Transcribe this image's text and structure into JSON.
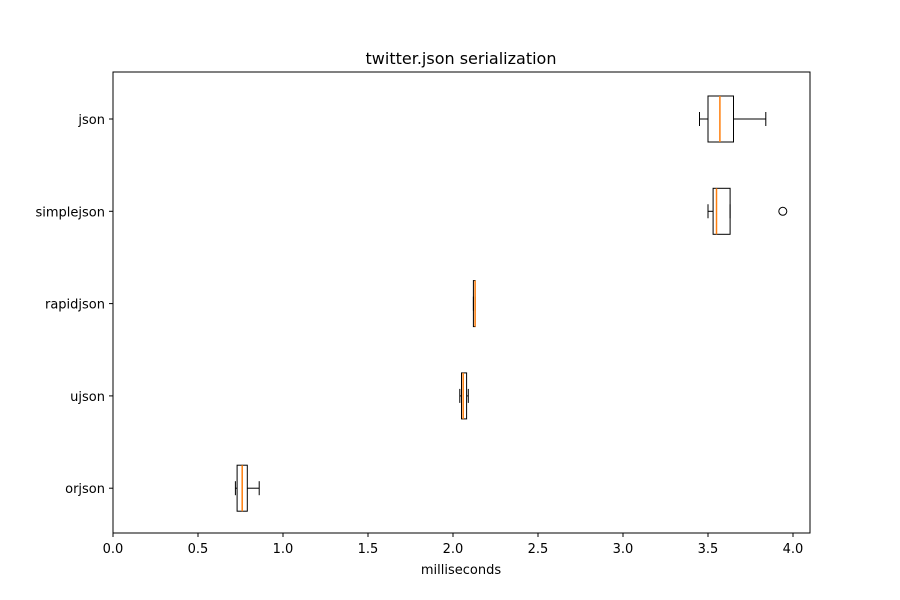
{
  "chart_data": {
    "type": "box",
    "orientation": "horizontal",
    "title": "twitter.json serialization",
    "xlabel": "milliseconds",
    "ylabel": "",
    "xlim": [
      0.0,
      4.1
    ],
    "xticks": [
      "0.0",
      "0.5",
      "1.0",
      "1.5",
      "2.0",
      "2.5",
      "3.0",
      "3.5",
      "4.0"
    ],
    "grid": false,
    "colors": {
      "box": "#000000",
      "median": "#ff7f0e",
      "flier": "#000000"
    },
    "series": [
      {
        "name": "json",
        "whisker_low": 3.45,
        "q1": 3.5,
        "median": 3.57,
        "q3": 3.65,
        "whisker_high": 3.84,
        "fliers": []
      },
      {
        "name": "simplejson",
        "whisker_low": 3.5,
        "q1": 3.53,
        "median": 3.55,
        "q3": 3.63,
        "whisker_high": 3.63,
        "fliers": [
          3.94
        ]
      },
      {
        "name": "rapidjson",
        "whisker_low": 2.12,
        "q1": 2.12,
        "median": 2.13,
        "q3": 2.13,
        "whisker_high": 2.13,
        "fliers": []
      },
      {
        "name": "ujson",
        "whisker_low": 2.04,
        "q1": 2.05,
        "median": 2.06,
        "q3": 2.08,
        "whisker_high": 2.09,
        "fliers": []
      },
      {
        "name": "orjson",
        "whisker_low": 0.72,
        "q1": 0.73,
        "median": 0.76,
        "q3": 0.79,
        "whisker_high": 0.86,
        "fliers": []
      }
    ]
  }
}
